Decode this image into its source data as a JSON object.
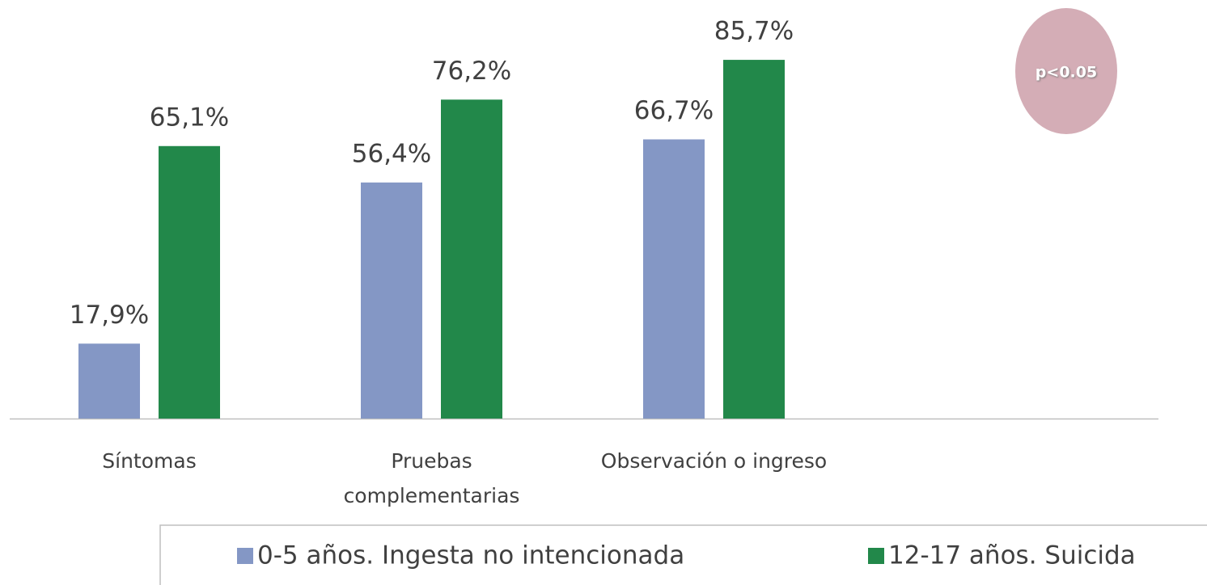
{
  "chart_data": {
    "type": "bar",
    "categories": [
      "Síntomas",
      "Pruebas complementarias",
      "Observación o ingreso"
    ],
    "series": [
      {
        "name": "0-5 años. Ingesta no intencionada",
        "color": "#8497c5",
        "values": [
          17.9,
          56.4,
          66.7
        ],
        "value_labels": [
          "17,9%",
          "56,4%",
          "66,7%"
        ]
      },
      {
        "name": "12-17 años. Suicida",
        "color": "#22884a",
        "values": [
          65.1,
          76.2,
          85.7
        ],
        "value_labels": [
          "65,1%",
          "76,2%",
          "85,7%"
        ]
      }
    ],
    "ylim": [
      0,
      100
    ],
    "annotation": "p<0.05"
  }
}
